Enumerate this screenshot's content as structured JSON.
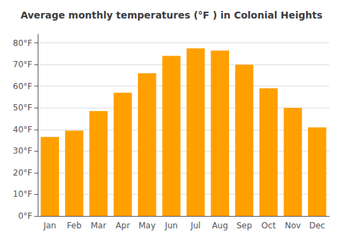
{
  "chart_data": {
    "type": "bar",
    "title": "Average monthly temperatures (°F ) in Colonial Heights",
    "categories": [
      "Jan",
      "Feb",
      "Mar",
      "Apr",
      "May",
      "Jun",
      "Jul",
      "Aug",
      "Sep",
      "Oct",
      "Nov",
      "Dec"
    ],
    "values": [
      36.5,
      39.5,
      48.5,
      57.0,
      66.0,
      74.0,
      77.5,
      76.5,
      70.0,
      59.0,
      50.0,
      41.0
    ],
    "color": "#FFA000",
    "ylim": [
      0,
      84
    ],
    "yticks": [
      {
        "value": 0,
        "label": "0°F"
      },
      {
        "value": 10,
        "label": "10°F"
      },
      {
        "value": 20,
        "label": "20°F"
      },
      {
        "value": 30,
        "label": "30°F"
      },
      {
        "value": 40,
        "label": "40°F"
      },
      {
        "value": 50,
        "label": "50°F"
      },
      {
        "value": 60,
        "label": "60°F"
      },
      {
        "value": 70,
        "label": "70°F"
      },
      {
        "value": 80,
        "label": "80°F"
      }
    ],
    "grid": true
  }
}
